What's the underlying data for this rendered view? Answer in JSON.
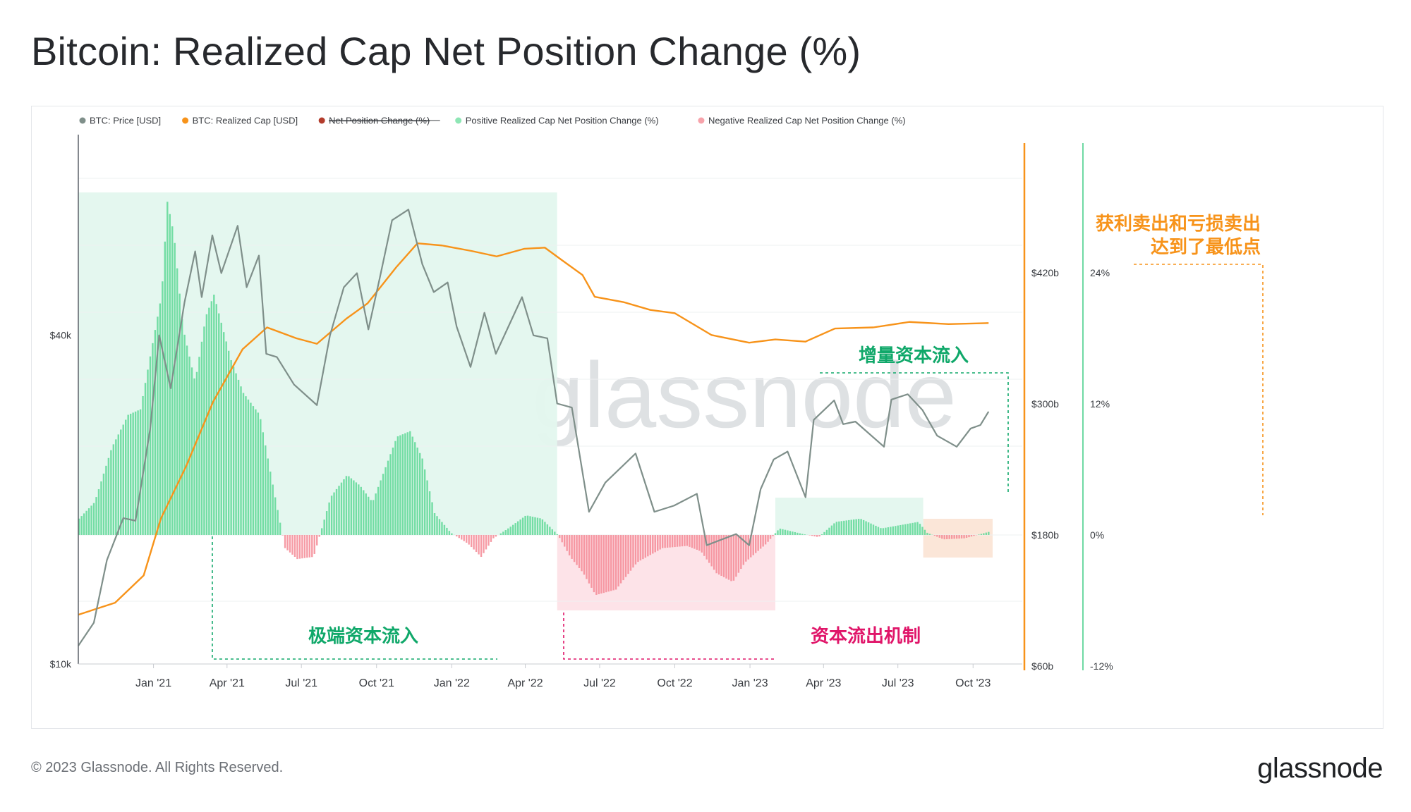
{
  "page": {
    "title": "Bitcoin: Realized Cap Net Position Change (%)",
    "copyright": "© 2023 Glassnode. All Rights Reserved.",
    "logo": "glassnode",
    "watermark": "glassnode"
  },
  "colors": {
    "price": "#7f8f8a",
    "realized_cap": "#f7931a",
    "net_position_change": "#b33c2c",
    "positive": "#8ee6b5",
    "positive_bar": "#5fd896",
    "negative": "#f7a3ab",
    "negative_bar": "#f48a95",
    "inflow_region": "#e3f7ee",
    "outflow_region": "#fde1e7",
    "low_region": "#fbe5d6",
    "annotation_green": "#10a86a",
    "annotation_red": "#e01569",
    "annotation_orange": "#f7931a",
    "right_axis_green": "#6fd9a3"
  },
  "chart_data": {
    "type": "line",
    "legend": [
      {
        "label": "BTC: Price [USD]",
        "color": "#7f8f8a",
        "strikethrough": false
      },
      {
        "label": "BTC: Realized Cap [USD]",
        "color": "#f7931a",
        "strikethrough": false
      },
      {
        "label": "Net Position Change (%)",
        "color": "#b33c2c",
        "strikethrough": true
      },
      {
        "label": "Positive Realized Cap Net Position Change (%)",
        "color": "#8ee6b5",
        "strikethrough": false
      },
      {
        "label": "Negative Realized Cap Net Position Change (%)",
        "color": "#f7a3ab",
        "strikethrough": false
      }
    ],
    "x_axis": {
      "start": "2020-10-01",
      "end": "2023-10-31",
      "ticks": [
        {
          "date": "2021-01-01",
          "label": "Jan '21"
        },
        {
          "date": "2021-04-01",
          "label": "Apr '21"
        },
        {
          "date": "2021-07-01",
          "label": "Jul '21"
        },
        {
          "date": "2021-10-01",
          "label": "Oct '21"
        },
        {
          "date": "2022-01-01",
          "label": "Jan '22"
        },
        {
          "date": "2022-04-01",
          "label": "Apr '22"
        },
        {
          "date": "2022-07-01",
          "label": "Jul '22"
        },
        {
          "date": "2022-10-01",
          "label": "Oct '22"
        },
        {
          "date": "2023-01-01",
          "label": "Jan '23"
        },
        {
          "date": "2023-04-01",
          "label": "Apr '23"
        },
        {
          "date": "2023-07-01",
          "label": "Jul '23"
        },
        {
          "date": "2023-10-01",
          "label": "Oct '23"
        }
      ]
    },
    "left_axis": {
      "scale": "log",
      "range": [
        10000,
        90000
      ],
      "ticks": [
        {
          "value": 10000,
          "label": "$10k"
        },
        {
          "value": 40000,
          "label": "$40k"
        }
      ]
    },
    "realized_cap_axis": {
      "unit": "billion USD",
      "range": [
        60,
        540
      ],
      "ticks": [
        {
          "value": 60,
          "label": "$60b"
        },
        {
          "value": 180,
          "label": "$180b"
        },
        {
          "value": 300,
          "label": "$300b"
        },
        {
          "value": 420,
          "label": "$420b"
        }
      ]
    },
    "change_axis": {
      "unit": "%",
      "range": [
        -12,
        36
      ],
      "ticks": [
        {
          "value": -12,
          "label": "-12%"
        },
        {
          "value": 0,
          "label": "0%"
        },
        {
          "value": 12,
          "label": "12%"
        },
        {
          "value": 24,
          "label": "24%"
        }
      ]
    },
    "series": [
      {
        "name": "BTC: Price [USD]",
        "points": [
          [
            "2020-10-01",
            10800
          ],
          [
            "2020-10-20",
            11900
          ],
          [
            "2020-11-05",
            15500
          ],
          [
            "2020-11-25",
            18500
          ],
          [
            "2020-12-10",
            18300
          ],
          [
            "2020-12-28",
            27000
          ],
          [
            "2021-01-08",
            40000
          ],
          [
            "2021-01-22",
            32000
          ],
          [
            "2021-02-08",
            46000
          ],
          [
            "2021-02-21",
            57000
          ],
          [
            "2021-03-01",
            47000
          ],
          [
            "2021-03-14",
            61000
          ],
          [
            "2021-03-25",
            52000
          ],
          [
            "2021-04-14",
            63500
          ],
          [
            "2021-04-25",
            49000
          ],
          [
            "2021-05-10",
            56000
          ],
          [
            "2021-05-19",
            37000
          ],
          [
            "2021-06-01",
            36500
          ],
          [
            "2021-06-22",
            32500
          ],
          [
            "2021-07-20",
            29800
          ],
          [
            "2021-08-05",
            40000
          ],
          [
            "2021-08-22",
            49000
          ],
          [
            "2021-09-07",
            52000
          ],
          [
            "2021-09-21",
            41000
          ],
          [
            "2021-10-05",
            51000
          ],
          [
            "2021-10-20",
            65000
          ],
          [
            "2021-11-09",
            68000
          ],
          [
            "2021-11-26",
            54000
          ],
          [
            "2021-12-10",
            48000
          ],
          [
            "2021-12-27",
            50000
          ],
          [
            "2022-01-07",
            41500
          ],
          [
            "2022-01-24",
            35000
          ],
          [
            "2022-02-10",
            44000
          ],
          [
            "2022-02-24",
            37000
          ],
          [
            "2022-03-28",
            47000
          ],
          [
            "2022-04-11",
            40000
          ],
          [
            "2022-04-28",
            39500
          ],
          [
            "2022-05-10",
            30000
          ],
          [
            "2022-05-28",
            29500
          ],
          [
            "2022-06-18",
            19000
          ],
          [
            "2022-07-08",
            21500
          ],
          [
            "2022-08-14",
            24300
          ],
          [
            "2022-09-06",
            19000
          ],
          [
            "2022-09-30",
            19500
          ],
          [
            "2022-10-28",
            20500
          ],
          [
            "2022-11-09",
            16500
          ],
          [
            "2022-12-15",
            17300
          ],
          [
            "2022-12-31",
            16500
          ],
          [
            "2023-01-14",
            20900
          ],
          [
            "2023-01-30",
            23700
          ],
          [
            "2023-02-16",
            24500
          ],
          [
            "2023-03-10",
            20200
          ],
          [
            "2023-03-20",
            28000
          ],
          [
            "2023-04-14",
            30400
          ],
          [
            "2023-04-25",
            27500
          ],
          [
            "2023-05-10",
            27800
          ],
          [
            "2023-06-14",
            25000
          ],
          [
            "2023-06-23",
            30500
          ],
          [
            "2023-07-13",
            31200
          ],
          [
            "2023-07-31",
            29200
          ],
          [
            "2023-08-18",
            26200
          ],
          [
            "2023-09-11",
            25000
          ],
          [
            "2023-09-28",
            27000
          ],
          [
            "2023-10-10",
            27400
          ],
          [
            "2023-10-20",
            29000
          ]
        ]
      },
      {
        "name": "BTC: Realized Cap [USD]",
        "unit": "billion USD",
        "points": [
          [
            "2020-10-01",
            107
          ],
          [
            "2020-11-15",
            118
          ],
          [
            "2020-12-20",
            143
          ],
          [
            "2021-01-10",
            195
          ],
          [
            "2021-02-10",
            243
          ],
          [
            "2021-03-15",
            302
          ],
          [
            "2021-04-20",
            350
          ],
          [
            "2021-05-20",
            370
          ],
          [
            "2021-06-25",
            360
          ],
          [
            "2021-07-20",
            355
          ],
          [
            "2021-08-25",
            378
          ],
          [
            "2021-09-20",
            392
          ],
          [
            "2021-10-25",
            425
          ],
          [
            "2021-11-20",
            447
          ],
          [
            "2021-12-20",
            445
          ],
          [
            "2022-01-25",
            440
          ],
          [
            "2022-02-25",
            435
          ],
          [
            "2022-03-31",
            442
          ],
          [
            "2022-04-25",
            443
          ],
          [
            "2022-05-15",
            432
          ],
          [
            "2022-06-10",
            418
          ],
          [
            "2022-06-25",
            398
          ],
          [
            "2022-07-31",
            393
          ],
          [
            "2022-09-01",
            386
          ],
          [
            "2022-10-01",
            383
          ],
          [
            "2022-11-15",
            363
          ],
          [
            "2022-12-31",
            356
          ],
          [
            "2023-02-01",
            359
          ],
          [
            "2023-03-10",
            357
          ],
          [
            "2023-04-15",
            369
          ],
          [
            "2023-06-01",
            370
          ],
          [
            "2023-07-15",
            375
          ],
          [
            "2023-09-01",
            373
          ],
          [
            "2023-10-20",
            374
          ]
        ]
      },
      {
        "name": "Realized Cap Net Position Change (%)",
        "points": [
          [
            "2020-10-01",
            1.5
          ],
          [
            "2020-10-20",
            3
          ],
          [
            "2020-11-10",
            8
          ],
          [
            "2020-11-30",
            11
          ],
          [
            "2020-12-15",
            11.5
          ],
          [
            "2021-01-10",
            22
          ],
          [
            "2021-01-17",
            30.5
          ],
          [
            "2021-01-25",
            27.5
          ],
          [
            "2021-02-05",
            19
          ],
          [
            "2021-02-20",
            14
          ],
          [
            "2021-03-05",
            20
          ],
          [
            "2021-03-15",
            22
          ],
          [
            "2021-04-05",
            16
          ],
          [
            "2021-04-20",
            13
          ],
          [
            "2021-05-10",
            11
          ],
          [
            "2021-05-25",
            5
          ],
          [
            "2021-06-10",
            -1.2
          ],
          [
            "2021-06-25",
            -2.2
          ],
          [
            "2021-07-15",
            -2.0
          ],
          [
            "2021-08-05",
            3.5
          ],
          [
            "2021-08-25",
            5.5
          ],
          [
            "2021-09-10",
            4.5
          ],
          [
            "2021-09-25",
            3
          ],
          [
            "2021-10-10",
            6
          ],
          [
            "2021-10-25",
            9
          ],
          [
            "2021-11-10",
            9.5
          ],
          [
            "2021-11-25",
            7
          ],
          [
            "2021-12-10",
            2
          ],
          [
            "2021-12-30",
            0.2
          ],
          [
            "2022-01-20",
            -0.8
          ],
          [
            "2022-02-05",
            -2
          ],
          [
            "2022-02-20",
            -0.3
          ],
          [
            "2022-03-10",
            0.6
          ],
          [
            "2022-04-01",
            1.8
          ],
          [
            "2022-04-20",
            1.5
          ],
          [
            "2022-05-10",
            0
          ],
          [
            "2022-05-25",
            -2
          ],
          [
            "2022-06-10",
            -3.5
          ],
          [
            "2022-06-25",
            -5.5
          ],
          [
            "2022-07-20",
            -5.0
          ],
          [
            "2022-08-15",
            -2.5
          ],
          [
            "2022-09-15",
            -1.2
          ],
          [
            "2022-10-15",
            -1.0
          ],
          [
            "2022-11-01",
            -1.5
          ],
          [
            "2022-11-20",
            -3.5
          ],
          [
            "2022-12-10",
            -4.3
          ],
          [
            "2022-12-25",
            -2.5
          ],
          [
            "2023-01-20",
            -0.8
          ],
          [
            "2023-02-05",
            0.6
          ],
          [
            "2023-03-05",
            0.1
          ],
          [
            "2023-03-25",
            -0.2
          ],
          [
            "2023-04-15",
            1.2
          ],
          [
            "2023-05-15",
            1.5
          ],
          [
            "2023-06-10",
            0.6
          ],
          [
            "2023-07-10",
            1.0
          ],
          [
            "2023-07-25",
            1.2
          ],
          [
            "2023-08-05",
            0.2
          ],
          [
            "2023-08-25",
            -0.4
          ],
          [
            "2023-09-20",
            -0.3
          ],
          [
            "2023-10-20",
            0.3
          ]
        ]
      }
    ],
    "regions": [
      {
        "name": "extreme-inflow",
        "from": "2020-10-01",
        "to": "2022-05-10",
        "type": "inflow"
      },
      {
        "name": "capital-outflow",
        "from": "2022-05-10",
        "to": "2023-02-01",
        "type": "outflow"
      },
      {
        "name": "incremental-inflow",
        "from": "2023-02-01",
        "to": "2023-08-01",
        "type": "inflow"
      },
      {
        "name": "lowest-point",
        "from": "2023-08-01",
        "to": "2023-10-20",
        "type": "low"
      }
    ],
    "annotations": {
      "extreme_inflow": "极端资本流入",
      "capital_outflow": "资本流出机制",
      "incremental_inflow": "增量资本流入",
      "lowest_line1": "获利卖出和亏损卖出",
      "lowest_line2": "达到了最低点"
    }
  }
}
